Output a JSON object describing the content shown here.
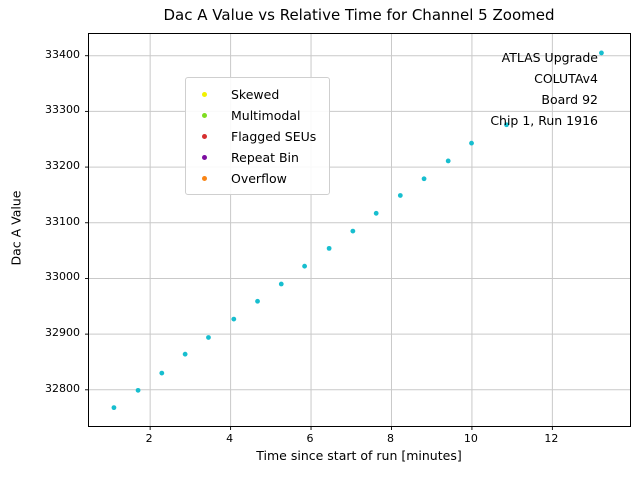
{
  "chart_data": {
    "type": "scatter",
    "title": "Dac A Value vs Relative Time for Channel 5 Zoomed",
    "xlabel": "Time since start of run [minutes]",
    "ylabel": "Dac A Value",
    "xlim": [
      0.48,
      13.93
    ],
    "ylim": [
      32735,
      33439
    ],
    "xticks": [
      2,
      4,
      6,
      8,
      10,
      12
    ],
    "yticks": [
      32800,
      32900,
      33000,
      33100,
      33200,
      33300,
      33400
    ],
    "grid": true,
    "grid_color": "#c9c9c9",
    "series": [
      {
        "name": "dac-a-readings",
        "color": "#17becf",
        "marker": "circle",
        "x": [
          1.1,
          1.7,
          2.29,
          2.87,
          3.45,
          4.08,
          4.67,
          5.26,
          5.84,
          6.45,
          7.04,
          7.62,
          8.22,
          8.81,
          9.41,
          9.99,
          10.86,
          13.22
        ],
        "y": [
          32768,
          32799,
          32830,
          32864,
          32894,
          32927,
          32959,
          32990,
          33022,
          33054,
          33085,
          33117,
          33149,
          33179,
          33211,
          33243,
          33276,
          33405
        ]
      }
    ],
    "legend": {
      "position": "upper-left",
      "entries": [
        {
          "label": "Skewed",
          "color": "#f2f200"
        },
        {
          "label": "Multimodal",
          "color": "#7fdd20"
        },
        {
          "label": "Flagged SEUs",
          "color": "#d62f2f"
        },
        {
          "label": "Repeat Bin",
          "color": "#7d0da1"
        },
        {
          "label": "Overflow",
          "color": "#f98516"
        }
      ]
    },
    "annotation": {
      "align": "right",
      "lines": [
        "ATLAS Upgrade",
        "COLUTAv4",
        "Board 92",
        "Chip 1, Run 1916"
      ]
    }
  }
}
